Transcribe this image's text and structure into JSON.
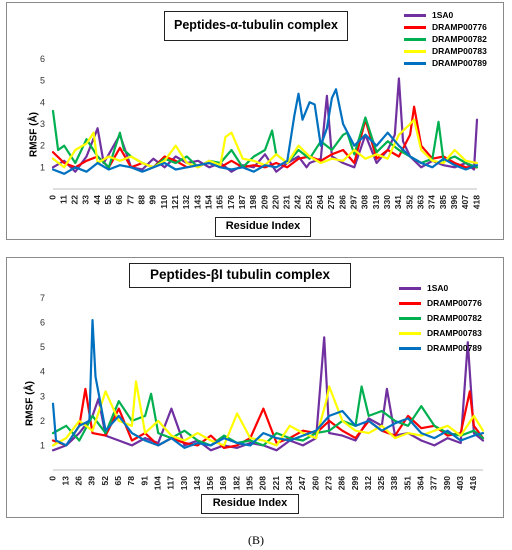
{
  "caption": "(B)",
  "chart_data": [
    {
      "type": "line",
      "title": "Peptides-α-tubulin complex",
      "xlabel": "Residue Index",
      "ylabel": "RMSF (Å)",
      "ylim": [
        0,
        6
      ],
      "yticks": [
        1,
        2,
        3,
        4,
        5,
        6
      ],
      "xlim": [
        0,
        418
      ],
      "xticks": [
        0,
        11,
        22,
        33,
        44,
        55,
        66,
        77,
        88,
        99,
        110,
        121,
        132,
        143,
        154,
        165,
        176,
        187,
        198,
        209,
        220,
        231,
        242,
        253,
        264,
        275,
        286,
        297,
        308,
        319,
        330,
        341,
        352,
        363,
        374,
        385,
        396,
        407,
        418
      ],
      "legend_position": "top-right",
      "series": [
        {
          "name": "1SA0",
          "color": "#7030a0",
          "x": [
            0,
            11,
            22,
            33,
            44,
            50,
            55,
            66,
            77,
            88,
            99,
            110,
            121,
            132,
            143,
            154,
            165,
            176,
            187,
            198,
            209,
            220,
            231,
            242,
            250,
            253,
            264,
            270,
            275,
            286,
            297,
            308,
            319,
            330,
            337,
            341,
            345,
            352,
            363,
            374,
            385,
            396,
            407,
            415,
            418
          ],
          "y": [
            1.0,
            1.3,
            0.8,
            1.5,
            2.8,
            1.2,
            1.6,
            2.5,
            1.0,
            0.9,
            1.4,
            1.0,
            1.5,
            1.2,
            1.3,
            1.0,
            1.2,
            0.8,
            1.1,
            1.0,
            1.6,
            0.8,
            1.2,
            1.5,
            1.0,
            1.2,
            1.4,
            4.3,
            1.5,
            1.2,
            1.0,
            2.5,
            1.2,
            1.8,
            2.5,
            5.1,
            2.2,
            1.5,
            1.0,
            1.3,
            1.1,
            1.0,
            1.2,
            0.9,
            3.2
          ]
        },
        {
          "name": "DRAMP00776",
          "color": "#ff0000",
          "x": [
            0,
            11,
            22,
            33,
            44,
            55,
            66,
            77,
            88,
            99,
            110,
            121,
            132,
            143,
            154,
            165,
            176,
            187,
            198,
            209,
            220,
            231,
            242,
            253,
            264,
            275,
            286,
            297,
            308,
            319,
            330,
            341,
            352,
            356,
            363,
            374,
            385,
            396,
            407,
            418
          ],
          "y": [
            1.7,
            1.2,
            1.0,
            1.3,
            1.5,
            1.0,
            1.9,
            1.0,
            1.2,
            1.0,
            1.5,
            1.3,
            1.0,
            1.1,
            1.2,
            1.0,
            1.3,
            1.0,
            1.1,
            1.0,
            1.2,
            1.0,
            1.4,
            1.5,
            1.3,
            1.6,
            1.8,
            1.2,
            3.2,
            1.4,
            1.8,
            1.5,
            2.5,
            3.8,
            2.0,
            1.4,
            1.5,
            1.2,
            1.0,
            1.0
          ]
        },
        {
          "name": "DRAMP00782",
          "color": "#00b050",
          "x": [
            0,
            5,
            11,
            22,
            33,
            44,
            55,
            66,
            70,
            77,
            88,
            99,
            110,
            121,
            132,
            143,
            154,
            165,
            176,
            187,
            198,
            209,
            216,
            220,
            231,
            242,
            253,
            264,
            275,
            286,
            290,
            297,
            308,
            319,
            330,
            341,
            352,
            363,
            374,
            380,
            385,
            396,
            407,
            418
          ],
          "y": [
            3.6,
            1.8,
            2.0,
            1.2,
            2.3,
            1.5,
            1.0,
            2.6,
            1.8,
            1.5,
            1.2,
            1.0,
            1.4,
            1.2,
            1.5,
            1.0,
            1.3,
            1.2,
            1.8,
            1.0,
            1.5,
            1.8,
            2.7,
            1.6,
            1.2,
            1.8,
            1.4,
            2.2,
            1.8,
            2.5,
            2.6,
            1.6,
            3.3,
            1.7,
            2.2,
            1.8,
            1.5,
            1.2,
            1.4,
            3.1,
            1.3,
            1.5,
            1.2,
            1.0
          ]
        },
        {
          "name": "DRAMP00783",
          "color": "#ffff00",
          "x": [
            0,
            11,
            22,
            33,
            40,
            44,
            55,
            66,
            77,
            88,
            99,
            110,
            121,
            132,
            143,
            154,
            165,
            170,
            176,
            187,
            198,
            209,
            220,
            231,
            242,
            253,
            264,
            275,
            286,
            297,
            308,
            319,
            330,
            341,
            352,
            356,
            363,
            374,
            385,
            396,
            407,
            418
          ],
          "y": [
            1.4,
            1.0,
            1.8,
            2.1,
            2.6,
            1.2,
            1.5,
            1.3,
            1.5,
            1.2,
            1.0,
            1.3,
            2.0,
            1.2,
            1.0,
            1.3,
            1.1,
            2.4,
            2.6,
            1.4,
            1.3,
            1.1,
            1.6,
            1.2,
            2.0,
            1.5,
            1.2,
            1.4,
            1.3,
            1.8,
            1.4,
            1.6,
            1.4,
            2.5,
            3.0,
            3.2,
            1.8,
            1.3,
            1.2,
            1.8,
            1.3,
            1.2
          ]
        },
        {
          "name": "DRAMP00789",
          "color": "#0070c0",
          "x": [
            0,
            11,
            22,
            33,
            44,
            55,
            66,
            77,
            88,
            99,
            110,
            121,
            132,
            143,
            154,
            165,
            176,
            187,
            198,
            209,
            220,
            231,
            238,
            242,
            246,
            253,
            258,
            264,
            270,
            275,
            279,
            286,
            297,
            308,
            319,
            330,
            341,
            352,
            363,
            374,
            385,
            396,
            407,
            418
          ],
          "y": [
            0.9,
            0.7,
            1.0,
            0.8,
            1.2,
            0.9,
            1.1,
            1.0,
            0.8,
            1.0,
            1.2,
            0.9,
            1.0,
            1.1,
            1.2,
            1.0,
            0.9,
            1.0,
            0.8,
            1.1,
            1.0,
            1.3,
            3.4,
            4.4,
            3.2,
            4.0,
            3.9,
            2.0,
            2.8,
            4.2,
            4.6,
            3.0,
            2.0,
            2.5,
            2.0,
            2.6,
            2.0,
            1.5,
            1.2,
            1.0,
            1.4,
            1.1,
            0.9,
            1.1
          ]
        }
      ]
    },
    {
      "type": "line",
      "title": "Peptides-βI tubulin complex",
      "xlabel": "Residue Index",
      "ylabel": "RMSF (Å)",
      "ylim": [
        0,
        7
      ],
      "yticks": [
        1,
        2,
        3,
        4,
        5,
        6,
        7
      ],
      "xlim": [
        0,
        425
      ],
      "xticks": [
        0,
        13,
        26,
        39,
        52,
        65,
        78,
        91,
        104,
        117,
        130,
        143,
        156,
        169,
        182,
        195,
        208,
        221,
        234,
        247,
        260,
        273,
        286,
        299,
        312,
        325,
        338,
        351,
        364,
        377,
        390,
        403,
        416
      ],
      "legend_position": "top-right",
      "series": [
        {
          "name": "1SA0",
          "color": "#7030a0",
          "x": [
            0,
            13,
            26,
            39,
            45,
            52,
            65,
            78,
            91,
            104,
            117,
            130,
            143,
            156,
            169,
            182,
            195,
            208,
            221,
            234,
            247,
            260,
            268,
            273,
            286,
            299,
            312,
            325,
            330,
            338,
            351,
            364,
            377,
            390,
            403,
            410,
            416,
            425
          ],
          "y": [
            0.8,
            1.0,
            1.5,
            2.2,
            2.9,
            1.4,
            1.2,
            1.0,
            1.3,
            1.1,
            2.5,
            1.0,
            1.2,
            0.8,
            1.0,
            0.9,
            1.1,
            1.0,
            0.8,
            1.2,
            1.0,
            1.3,
            5.4,
            1.5,
            1.4,
            1.2,
            2.1,
            1.8,
            3.3,
            1.4,
            1.5,
            1.2,
            1.0,
            1.3,
            1.1,
            5.2,
            1.5,
            1.2
          ]
        },
        {
          "name": "DRAMP00776",
          "color": "#ff0000",
          "x": [
            0,
            13,
            26,
            32,
            39,
            52,
            65,
            78,
            91,
            104,
            117,
            130,
            143,
            156,
            169,
            182,
            195,
            208,
            221,
            234,
            247,
            260,
            273,
            286,
            299,
            312,
            325,
            338,
            351,
            364,
            377,
            390,
            403,
            412,
            416,
            425
          ],
          "y": [
            1.2,
            1.0,
            1.8,
            3.3,
            1.5,
            1.4,
            2.5,
            1.2,
            1.5,
            1.0,
            1.3,
            1.1,
            1.0,
            1.4,
            0.9,
            1.0,
            1.3,
            2.5,
            1.1,
            1.3,
            1.6,
            1.5,
            2.0,
            1.6,
            1.3,
            2.0,
            1.6,
            1.4,
            2.2,
            1.7,
            1.8,
            1.4,
            1.5,
            3.2,
            1.8,
            1.3
          ]
        },
        {
          "name": "DRAMP00782",
          "color": "#00b050",
          "x": [
            0,
            13,
            26,
            39,
            52,
            65,
            78,
            91,
            97,
            104,
            117,
            130,
            143,
            156,
            169,
            182,
            195,
            208,
            221,
            234,
            247,
            260,
            273,
            286,
            299,
            305,
            312,
            325,
            338,
            351,
            364,
            377,
            390,
            403,
            416,
            425
          ],
          "y": [
            1.5,
            1.8,
            1.2,
            2.2,
            1.5,
            2.8,
            2.0,
            2.2,
            3.1,
            1.5,
            1.3,
            1.6,
            1.2,
            1.0,
            1.4,
            1.1,
            1.2,
            1.0,
            1.5,
            1.3,
            1.2,
            1.5,
            1.6,
            2.0,
            1.8,
            3.4,
            2.2,
            2.4,
            2.0,
            1.8,
            2.6,
            1.8,
            1.5,
            1.4,
            1.6,
            1.3
          ]
        },
        {
          "name": "DRAMP00783",
          "color": "#ffff00",
          "x": [
            0,
            13,
            26,
            39,
            52,
            65,
            78,
            82,
            91,
            104,
            117,
            130,
            143,
            156,
            169,
            182,
            195,
            208,
            221,
            234,
            247,
            260,
            270,
            273,
            286,
            299,
            312,
            325,
            338,
            351,
            364,
            377,
            390,
            403,
            416,
            425
          ],
          "y": [
            1.0,
            1.3,
            2.0,
            1.6,
            3.2,
            2.0,
            1.8,
            3.6,
            1.5,
            2.0,
            1.4,
            1.2,
            1.5,
            1.2,
            1.0,
            2.3,
            1.3,
            1.2,
            1.0,
            1.8,
            1.5,
            1.3,
            2.8,
            3.4,
            2.0,
            1.6,
            1.5,
            1.8,
            1.3,
            1.5,
            1.4,
            1.6,
            1.8,
            1.4,
            2.2,
            1.6
          ]
        },
        {
          "name": "DRAMP00789",
          "color": "#0070c0",
          "x": [
            0,
            3,
            13,
            26,
            36,
            39,
            42,
            52,
            65,
            78,
            91,
            104,
            117,
            130,
            143,
            156,
            169,
            182,
            195,
            208,
            221,
            234,
            247,
            260,
            273,
            286,
            299,
            312,
            325,
            338,
            351,
            364,
            377,
            390,
            403,
            416,
            425
          ],
          "y": [
            2.7,
            1.2,
            1.0,
            1.8,
            2.0,
            6.1,
            3.8,
            1.6,
            2.2,
            1.5,
            1.2,
            1.0,
            1.3,
            0.9,
            1.1,
            1.0,
            1.3,
            1.1,
            1.0,
            1.5,
            1.3,
            1.2,
            1.4,
            1.6,
            2.2,
            2.4,
            1.8,
            2.0,
            1.6,
            1.9,
            2.1,
            1.5,
            1.3,
            1.6,
            1.2,
            1.4,
            1.5
          ]
        }
      ]
    }
  ]
}
